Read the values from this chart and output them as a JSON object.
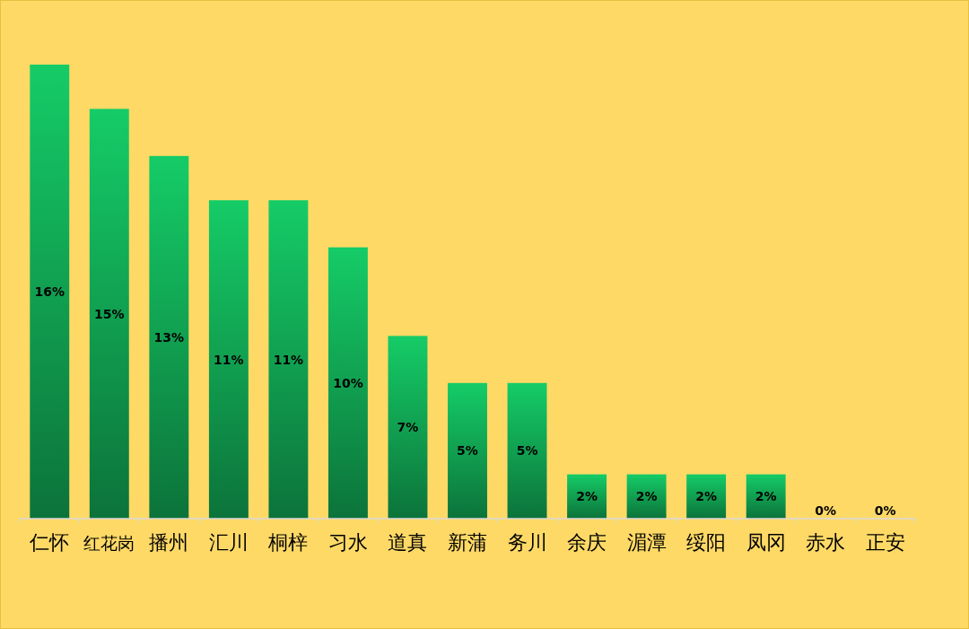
{
  "chart_data": {
    "type": "bar",
    "categories": [
      "仁怀",
      "红花岗",
      "播州",
      "汇川",
      "桐梓",
      "习水",
      "道真",
      "新蒲",
      "务川",
      "余庆",
      "湄潭",
      "绥阳",
      "凤冈",
      "赤水",
      "正安"
    ],
    "values": [
      16.4,
      14.8,
      13.1,
      11.5,
      11.5,
      9.8,
      6.6,
      4.9,
      4.9,
      1.6,
      1.6,
      1.6,
      1.6,
      0,
      0
    ],
    "value_labels": [
      "16%",
      "15%",
      "13%",
      "11%",
      "11%",
      "10%",
      "7%",
      "5%",
      "5%",
      "2%",
      "2%",
      "2%",
      "2%",
      "0%",
      "0%"
    ],
    "color": "#15cc67"
  }
}
